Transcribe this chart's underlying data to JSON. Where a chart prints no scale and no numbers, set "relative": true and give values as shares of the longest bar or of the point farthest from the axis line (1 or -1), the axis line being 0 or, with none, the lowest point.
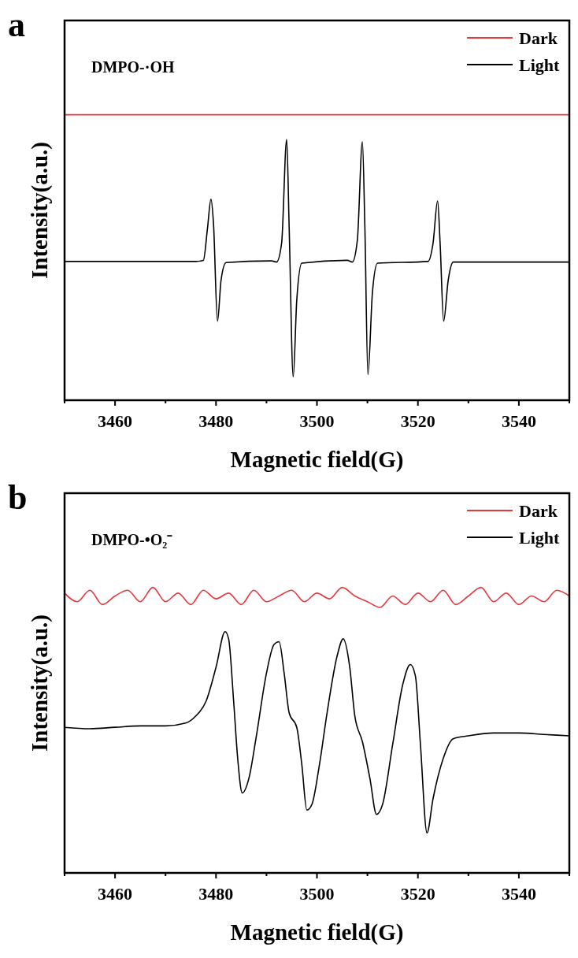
{
  "chart_data": [
    {
      "type": "line",
      "title": "a",
      "xlabel": "Magnetic field(G)",
      "ylabel": "Intensity(a.u.)",
      "relative": true,
      "legend": "top right",
      "tick_labels": "x",
      "annotations": [
        "DMPO-·OH"
      ],
      "xlim": [
        3450,
        3550
      ],
      "xticks": [
        {
          "value": 3450,
          "label": null
        },
        3460,
        {
          "value": 3470,
          "label": null
        },
        3480,
        {
          "value": 3490,
          "label": null
        },
        3500,
        {
          "value": 3510,
          "label": null
        },
        3520,
        {
          "value": 3530,
          "label": null
        },
        3540,
        {
          "value": 3550,
          "label": null
        }
      ],
      "series": [
        {
          "name": "Dark",
          "color": "#e8383d",
          "x": [
            3450,
            3475,
            3500,
            3525,
            3550
          ],
          "values": [
            1,
            1,
            1,
            1,
            1
          ]
        },
        {
          "name": "Light",
          "color": "#000000",
          "x": [
            3450,
            3476,
            3477.5,
            3478.3,
            3479,
            3479.5,
            3480.3,
            3481,
            3482,
            3491,
            3492,
            3493,
            3494,
            3494.5,
            3495.3,
            3496,
            3497,
            3506,
            3507,
            3508,
            3509,
            3509.5,
            3510.1,
            3511,
            3512,
            3522,
            3523,
            3523.9,
            3524.4,
            3525.1,
            3526,
            3527,
            3550
          ],
          "values": [
            0.486,
            0.486,
            0.49,
            0.6,
            0.704,
            0.62,
            0.277,
            0.42,
            0.482,
            0.488,
            0.484,
            0.55,
            0.913,
            0.6,
            0.082,
            0.35,
            0.48,
            0.49,
            0.484,
            0.56,
            0.905,
            0.6,
            0.09,
            0.38,
            0.48,
            0.486,
            0.55,
            0.698,
            0.55,
            0.277,
            0.42,
            0.484,
            0.484
          ]
        }
      ]
    },
    {
      "type": "line",
      "title": "b",
      "xlabel": "Magnetic field(G)",
      "ylabel": "Intensity(a.u.)",
      "relative": true,
      "legend": "top right",
      "tick_labels": "x",
      "annotations": [
        "DMPO-•O₂⁻"
      ],
      "xlim": [
        3450,
        3550
      ],
      "xticks": [
        {
          "value": 3450,
          "label": null
        },
        3460,
        {
          "value": 3470,
          "label": null
        },
        3480,
        {
          "value": 3490,
          "label": null
        },
        3500,
        {
          "value": 3510,
          "label": null
        },
        3520,
        {
          "value": 3530,
          "label": null
        },
        3540,
        {
          "value": 3550,
          "label": null
        }
      ],
      "series": [
        {
          "name": "Dark",
          "color": "#e8383d",
          "x": [
            3450,
            3452.5,
            3455,
            3457.5,
            3460,
            3462.5,
            3465,
            3467.5,
            3470,
            3472.5,
            3475,
            3477.5,
            3480,
            3482.5,
            3485,
            3487.5,
            3490,
            3492.5,
            3495,
            3497.5,
            3500,
            3502.5,
            3505,
            3507.5,
            3510,
            3512.5,
            3515,
            3517.5,
            3520,
            3522.5,
            3525,
            3527.5,
            3530,
            3532.5,
            3535,
            3537.5,
            3540,
            3542.5,
            3545,
            3547.5,
            3550
          ],
          "values": [
            0.98,
            0.95,
            0.99,
            0.94,
            0.97,
            0.99,
            0.95,
            1,
            0.95,
            0.98,
            0.94,
            0.99,
            0.96,
            0.98,
            0.94,
            0.99,
            0.95,
            0.97,
            0.99,
            0.95,
            0.98,
            0.96,
            1,
            0.97,
            0.95,
            0.93,
            0.97,
            0.94,
            0.98,
            0.95,
            0.99,
            0.94,
            0.97,
            1,
            0.95,
            0.98,
            0.94,
            0.97,
            0.95,
            0.99,
            0.97
          ]
        },
        {
          "name": "Light",
          "color": "#000000",
          "x": [
            3450,
            3455,
            3460,
            3465,
            3470,
            3474,
            3476,
            3478,
            3480,
            3481.8,
            3482.5,
            3483.5,
            3484.3,
            3485.2,
            3486.5,
            3488,
            3490,
            3491.5,
            3492.5,
            3493.5,
            3494.5,
            3496,
            3497,
            3498,
            3499,
            3500.5,
            3502,
            3504,
            3505.2,
            3506.5,
            3507.5,
            3509,
            3510.5,
            3511.8,
            3513,
            3515,
            3517,
            3518.5,
            3519.5,
            3520.5,
            3521.8,
            3523,
            3525,
            3527,
            3530,
            3535,
            3540,
            3545,
            3550
          ],
          "values": [
            0.51,
            0.505,
            0.51,
            0.515,
            0.515,
            0.525,
            0.55,
            0.6,
            0.72,
            0.845,
            0.82,
            0.6,
            0.4,
            0.28,
            0.33,
            0.48,
            0.7,
            0.8,
            0.81,
            0.7,
            0.56,
            0.51,
            0.38,
            0.22,
            0.24,
            0.38,
            0.56,
            0.76,
            0.82,
            0.72,
            0.55,
            0.46,
            0.33,
            0.205,
            0.24,
            0.45,
            0.66,
            0.73,
            0.69,
            0.45,
            0.14,
            0.26,
            0.4,
            0.47,
            0.48,
            0.49,
            0.49,
            0.485,
            0.48
          ]
        }
      ]
    }
  ]
}
